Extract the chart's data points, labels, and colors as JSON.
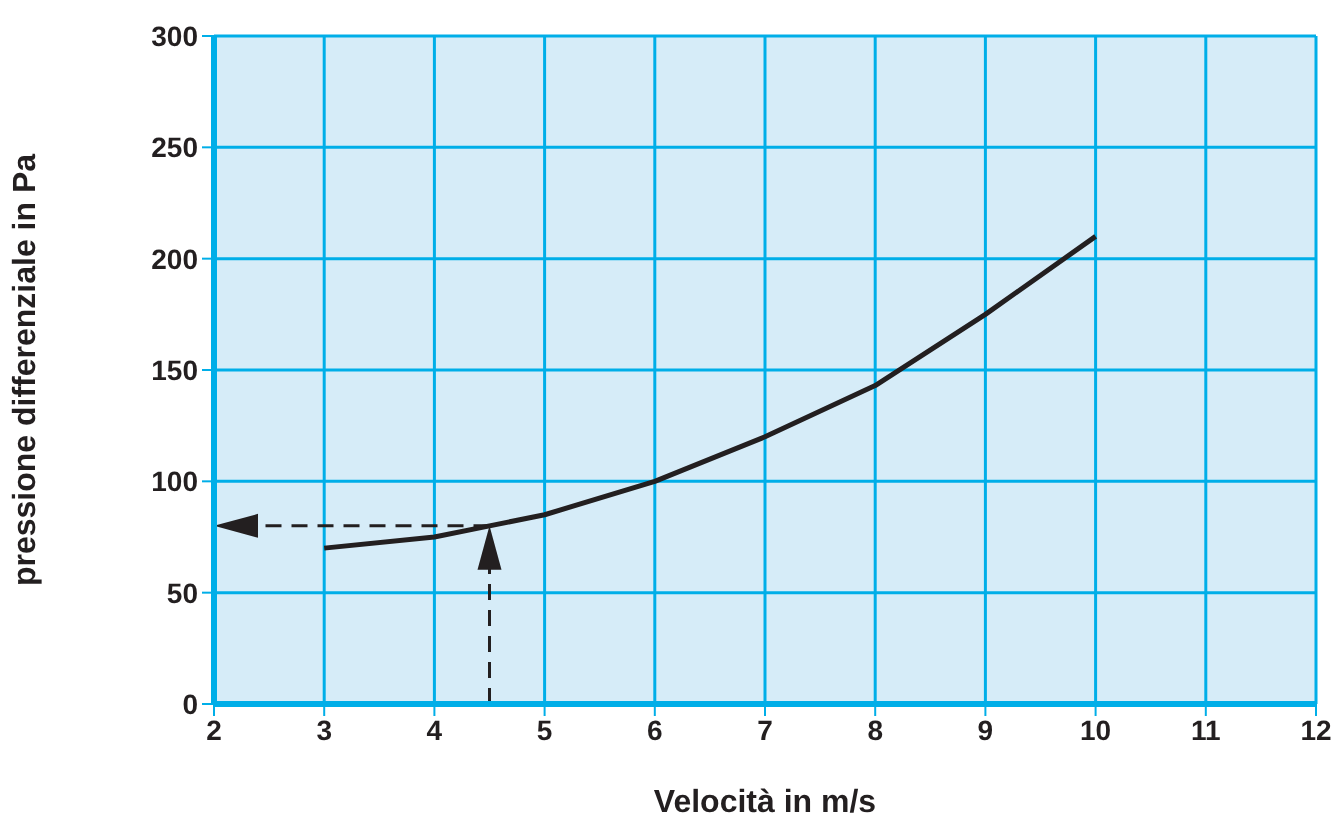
{
  "chart_data": {
    "type": "line",
    "xlabel": "Velocità in m/s",
    "ylabel": "pressione differenziale in Pa",
    "x": [
      3,
      4,
      4.5,
      5,
      6,
      7,
      8,
      9,
      10
    ],
    "series": [
      {
        "color": "#231f20",
        "values": [
          70,
          75,
          80,
          85,
          100,
          120,
          143,
          175,
          210
        ]
      }
    ],
    "xlim": [
      2,
      12
    ],
    "xticks": [
      2,
      3,
      4,
      5,
      6,
      7,
      8,
      9,
      10,
      11,
      12
    ],
    "ylim": [
      0,
      300
    ],
    "yticks": [
      0,
      50,
      100,
      150,
      200,
      250,
      300
    ],
    "grid": true,
    "marker": "none",
    "line_style": "solid"
  }
}
